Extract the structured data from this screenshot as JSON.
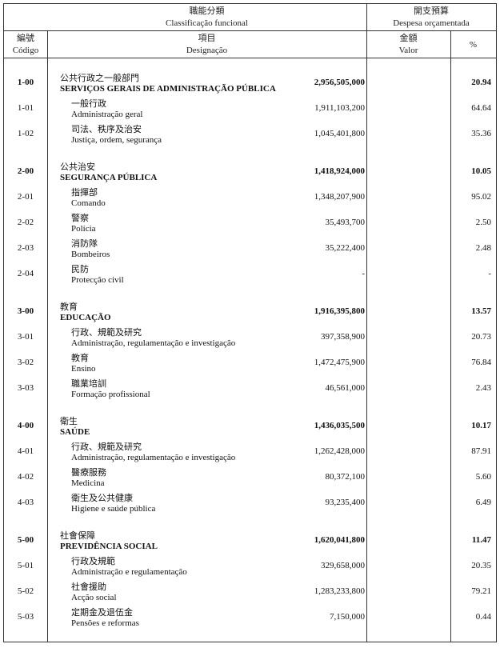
{
  "header": {
    "classification_zh": "職能分類",
    "classification_pt": "Classificação funcional",
    "budget_zh": "開支預算",
    "budget_pt": "Despesa orçamentada",
    "code_zh": "編號",
    "code_pt": "Código",
    "item_zh": "項目",
    "item_pt": "Designação",
    "value_zh": "金額",
    "value_pt": "Valor",
    "pct": "%"
  },
  "rows": [
    {
      "group": true,
      "code": "1-00",
      "zh": "公共行政之一般部門",
      "pt": "SERVIÇOS GERAIS DE ADMINISTRAÇÃO PÚBLICA",
      "value": "2,956,505,000",
      "pct": "20.94"
    },
    {
      "code": "1-01",
      "zh": "一般行政",
      "pt": "Administração geral",
      "value": "1,911,103,200",
      "pct": "64.64"
    },
    {
      "code": "1-02",
      "zh": "司法、秩序及治安",
      "pt": "Justiça, ordem, segurança",
      "value": "1,045,401,800",
      "pct": "35.36"
    },
    {
      "group": true,
      "code": "2-00",
      "zh": "公共治安",
      "pt": "SEGURANÇA PÚBLICA",
      "value": "1,418,924,000",
      "pct": "10.05"
    },
    {
      "code": "2-01",
      "zh": "指揮部",
      "pt": "Comando",
      "value": "1,348,207,900",
      "pct": "95.02"
    },
    {
      "code": "2-02",
      "zh": "警察",
      "pt": "Polícia",
      "value": "35,493,700",
      "pct": "2.50"
    },
    {
      "code": "2-03",
      "zh": "消防隊",
      "pt": "Bombeiros",
      "value": "35,222,400",
      "pct": "2.48"
    },
    {
      "code": "2-04",
      "zh": "民防",
      "pt": "Protecção civil",
      "value": "-",
      "pct": "-"
    },
    {
      "group": true,
      "code": "3-00",
      "zh": "教育",
      "pt": "EDUCAÇÃO",
      "value": "1,916,395,800",
      "pct": "13.57"
    },
    {
      "code": "3-01",
      "zh": "行政、規範及研究",
      "pt": "Administração, regulamentação e investigação",
      "value": "397,358,900",
      "pct": "20.73"
    },
    {
      "code": "3-02",
      "zh": "教育",
      "pt": "Ensino",
      "value": "1,472,475,900",
      "pct": "76.84"
    },
    {
      "code": "3-03",
      "zh": "職業培訓",
      "pt": "Formação profissional",
      "value": "46,561,000",
      "pct": "2.43"
    },
    {
      "group": true,
      "code": "4-00",
      "zh": "衛生",
      "pt": "SAÚDE",
      "value": "1,436,035,500",
      "pct": "10.17"
    },
    {
      "code": "4-01",
      "zh": "行政、規範及研究",
      "pt": "Administração, regulamentação e investigação",
      "value": "1,262,428,000",
      "pct": "87.91"
    },
    {
      "code": "4-02",
      "zh": "醫療服務",
      "pt": "Medicina",
      "value": "80,372,100",
      "pct": "5.60"
    },
    {
      "code": "4-03",
      "zh": "衛生及公共健康",
      "pt": "Higiene e saúde pública",
      "value": "93,235,400",
      "pct": "6.49"
    },
    {
      "group": true,
      "code": "5-00",
      "zh": "社會保障",
      "pt": "PREVIDÊNCIA SOCIAL",
      "value": "1,620,041,800",
      "pct": "11.47"
    },
    {
      "code": "5-01",
      "zh": "行政及規範",
      "pt": "Administração e regulamentação",
      "value": "329,658,000",
      "pct": "20.35"
    },
    {
      "code": "5-02",
      "zh": "社會援助",
      "pt": "Acção social",
      "value": "1,283,233,800",
      "pct": "79.21"
    },
    {
      "code": "5-03",
      "zh": "定期金及退伍金",
      "pt": "Pensões e reformas",
      "value": "7,150,000",
      "pct": "0.44"
    }
  ]
}
